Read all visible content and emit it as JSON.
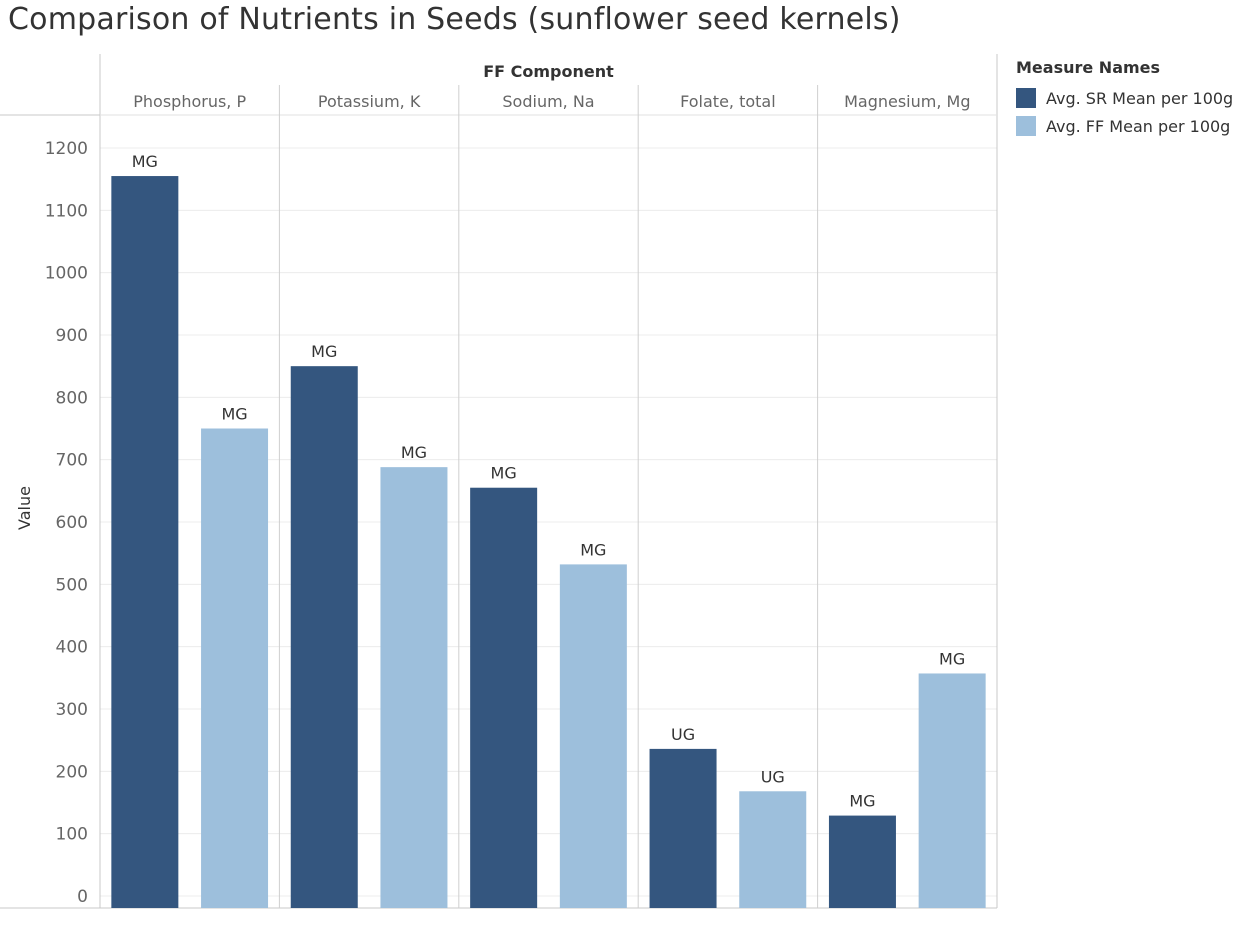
{
  "chart_data": {
    "type": "bar",
    "title": "Comparison of Nutrients in Seeds (sunflower seed kernels)",
    "facet_title": "FF Component",
    "ylabel": "Value",
    "ylim": [
      0,
      1200
    ],
    "yticks": [
      0,
      100,
      200,
      300,
      400,
      500,
      600,
      700,
      800,
      900,
      1000,
      1100,
      1200
    ],
    "grid": true,
    "legend_position": "right",
    "legend_title": "Measure Names",
    "categories": [
      "Phosphorus, P",
      "Potassium, K",
      "Sodium, Na",
      "Folate, total",
      "Magnesium, Mg"
    ],
    "series": [
      {
        "name": "Avg. SR Mean per 100g",
        "color": "#34567f",
        "values": [
          1155,
          850,
          655,
          236,
          129
        ],
        "labels": [
          "MG",
          "MG",
          "MG",
          "UG",
          "MG"
        ]
      },
      {
        "name": "Avg. FF Mean per 100g",
        "color": "#9dbfdc",
        "values": [
          750,
          688,
          532,
          168,
          357
        ],
        "labels": [
          "MG",
          "MG",
          "MG",
          "UG",
          "MG"
        ]
      }
    ]
  }
}
